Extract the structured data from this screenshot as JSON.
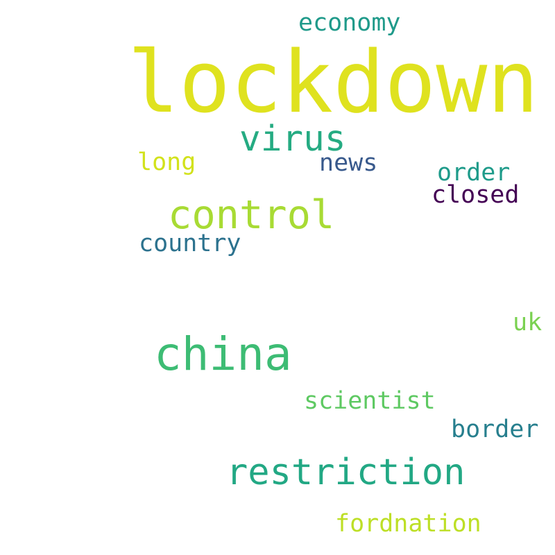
{
  "words": {
    "lockdown": {
      "text": "lockdown",
      "color": "#dfe21f"
    },
    "economy": {
      "text": "economy",
      "color": "#1f9a8a"
    },
    "virus": {
      "text": "virus",
      "color": "#25ab82"
    },
    "long": {
      "text": "long",
      "color": "#d2e21b"
    },
    "news": {
      "text": "news",
      "color": "#38598c"
    },
    "order": {
      "text": "order",
      "color": "#1e9b8a"
    },
    "closed": {
      "text": "closed",
      "color": "#440154"
    },
    "control": {
      "text": "control",
      "color": "#a8db34"
    },
    "country": {
      "text": "country",
      "color": "#2c728e"
    },
    "uk": {
      "text": "uk",
      "color": "#7ad151"
    },
    "china": {
      "text": "china",
      "color": "#3dbc74"
    },
    "scientist": {
      "text": "scientist",
      "color": "#5ec962"
    },
    "border": {
      "text": "border",
      "color": "#277f8e"
    },
    "restriction": {
      "text": "restriction",
      "color": "#22a884"
    },
    "fordnation": {
      "text": "fordnation",
      "color": "#bddf26"
    }
  }
}
